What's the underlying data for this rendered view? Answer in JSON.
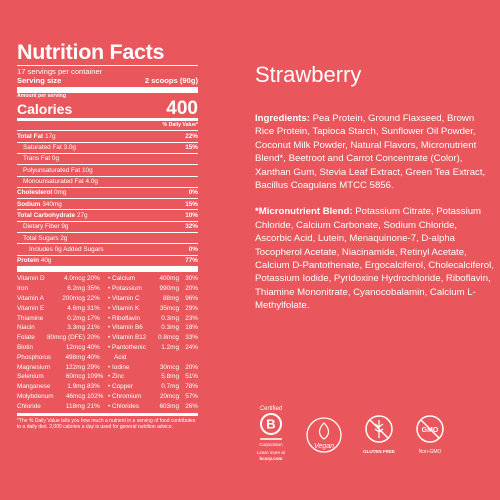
{
  "label": {
    "title": "Nutrition Facts",
    "servings": "17 servings per container",
    "serving_size_label": "Serving size",
    "serving_size": "2 scoops (90g)",
    "amount_per_serving": "Amount per serving",
    "calories_label": "Calories",
    "calories": "400",
    "dv_header": "% Daily Value*",
    "nutrients": [
      {
        "name": "Total Fat",
        "amount": "17g",
        "dv": "22%",
        "level": 0
      },
      {
        "name": "Saturated Fat",
        "amount": "3.0g",
        "dv": "15%",
        "level": 1
      },
      {
        "name": "Trans Fat",
        "amount": "0g",
        "level": 1
      },
      {
        "name": "Polyunsaturated Fat",
        "amount": "10g",
        "level": 1
      },
      {
        "name": "Monounsaturated Fat",
        "amount": "4.0g",
        "level": 1
      },
      {
        "name": "Cholesterol",
        "amount": "0mg",
        "dv": "0%",
        "level": 0
      },
      {
        "name": "Sodium",
        "amount": "340mg",
        "dv": "15%",
        "level": 0
      },
      {
        "name": "Total Carbohydrate",
        "amount": "27g",
        "dv": "10%",
        "level": 0
      },
      {
        "name": "Dietary Fiber",
        "amount": "9g",
        "dv": "32%",
        "level": 1
      },
      {
        "name": "Total Sugars",
        "amount": "2g",
        "level": 1
      },
      {
        "name": "Includes 0g Added Sugars",
        "dv": "0%",
        "level": 2
      },
      {
        "name": "Protein",
        "amount": "40g",
        "dv": "77%",
        "level": 0
      }
    ],
    "micronutrients": [
      {
        "left": [
          "Vitamin D",
          "4.0mcg",
          "20%"
        ],
        "right": [
          "• Calcium",
          "400mg",
          "30%"
        ]
      },
      {
        "left": [
          "Iron",
          "6.2mg",
          "35%"
        ],
        "right": [
          "• Potassium",
          "990mg",
          "20%"
        ]
      },
      {
        "left": [
          "Vitamin A",
          "200mcg",
          "22%"
        ],
        "right": [
          "• Vitamin C",
          "88mg",
          "96%"
        ]
      },
      {
        "left": [
          "Vitamin E",
          "4.6mg",
          "31%"
        ],
        "right": [
          "• Vitamin K",
          "35mcg",
          "29%"
        ]
      },
      {
        "left": [
          "Thiamine",
          "0.2mg",
          "17%"
        ],
        "right": [
          "• Riboflavin",
          "0.3mg",
          "23%"
        ]
      },
      {
        "left": [
          "Niacin",
          "3.3mg",
          "21%"
        ],
        "right": [
          "• Vitamin B6",
          "0.3mg",
          "18%"
        ]
      },
      {
        "left": [
          "Folate",
          "80mcg (DFE)",
          "20%"
        ],
        "right": [
          "• Vitamin B12",
          "0.8mcg",
          "33%"
        ]
      },
      {
        "left": [
          "Biotin",
          "12mcg",
          "40%"
        ],
        "right": [
          "• Pantothenic",
          "1.2mg",
          "24%"
        ]
      },
      {
        "left": [
          "Phosphorus",
          "498mg",
          "40%"
        ],
        "right": [
          "Acid"
        ]
      },
      {
        "left": [
          "Magnesium",
          "122mg",
          "29%"
        ],
        "right": [
          "• Iodine",
          "30mcg",
          "20%"
        ]
      },
      {
        "left": [
          "Selenium",
          "60mcg",
          "109%"
        ],
        "right": [
          "• Zinc",
          "5.8mg",
          "51%"
        ]
      },
      {
        "left": [
          "Manganese",
          "1.9mg",
          "83%"
        ],
        "right": [
          "• Copper",
          "0.7mg",
          "78%"
        ]
      },
      {
        "left": [
          "Molybdenum",
          "46mcg",
          "102%"
        ],
        "right": [
          "• Chromium",
          "20mcg",
          "57%"
        ]
      },
      {
        "left": [
          "Chloride",
          "118mg",
          "21%"
        ],
        "right": [
          "• Chlorides",
          "603mg",
          "26%"
        ]
      }
    ],
    "footnote": "*The % Daily Value tells you how much a nutrient in a serving of food contributes to a daily diet. 2,000 calories a day is used for general nutrition advice."
  },
  "product": {
    "name": "Strawberry",
    "ingredients": {
      "lead": "Ingredients:",
      "text": " Pea Protein, Ground Flaxseed, Brown Rice Protein, Tapioca Starch, Sunflower Oil Powder, Coconut Milk Powder, Natural Flavors, Micronutrient Blend*, Beetroot and Carrot Concentrate (Color), Xanthan Gum, Stevia Leaf Extract, Green Tea Extract, Bacillus Coagulans MTCC 5856."
    },
    "blend": {
      "lead": "*Micronutrient Blend:",
      "text": " Potassium Citrate, Potassium Chloride, Calcium Carbonate, Sodium Chloride, Ascorbic Acid, Lutein, Menaquinone-7, D-alpha Tocopherol Acetate, Niacinamide, Retinyl Acetate, Calcium D-Pantothenate, Ergocalciferol, Cholecalciferol, Potassium Iodide, Pyridoxine Hydrochloride, Riboflavin, Thiamine Mononitrate, Cyanocobalamin, Calcium L-Methylfolate."
    }
  },
  "certifications": {
    "bcorp": {
      "certified": "Certified",
      "letter": "B",
      "corporation": "Corporation",
      "learn": "Learn more at",
      "url": "bcorp.com"
    },
    "vegan": "Vegan",
    "gluten_free": "GLUTEN FREE",
    "gmo": "GMO",
    "non_gmo": "Non-GMO"
  }
}
